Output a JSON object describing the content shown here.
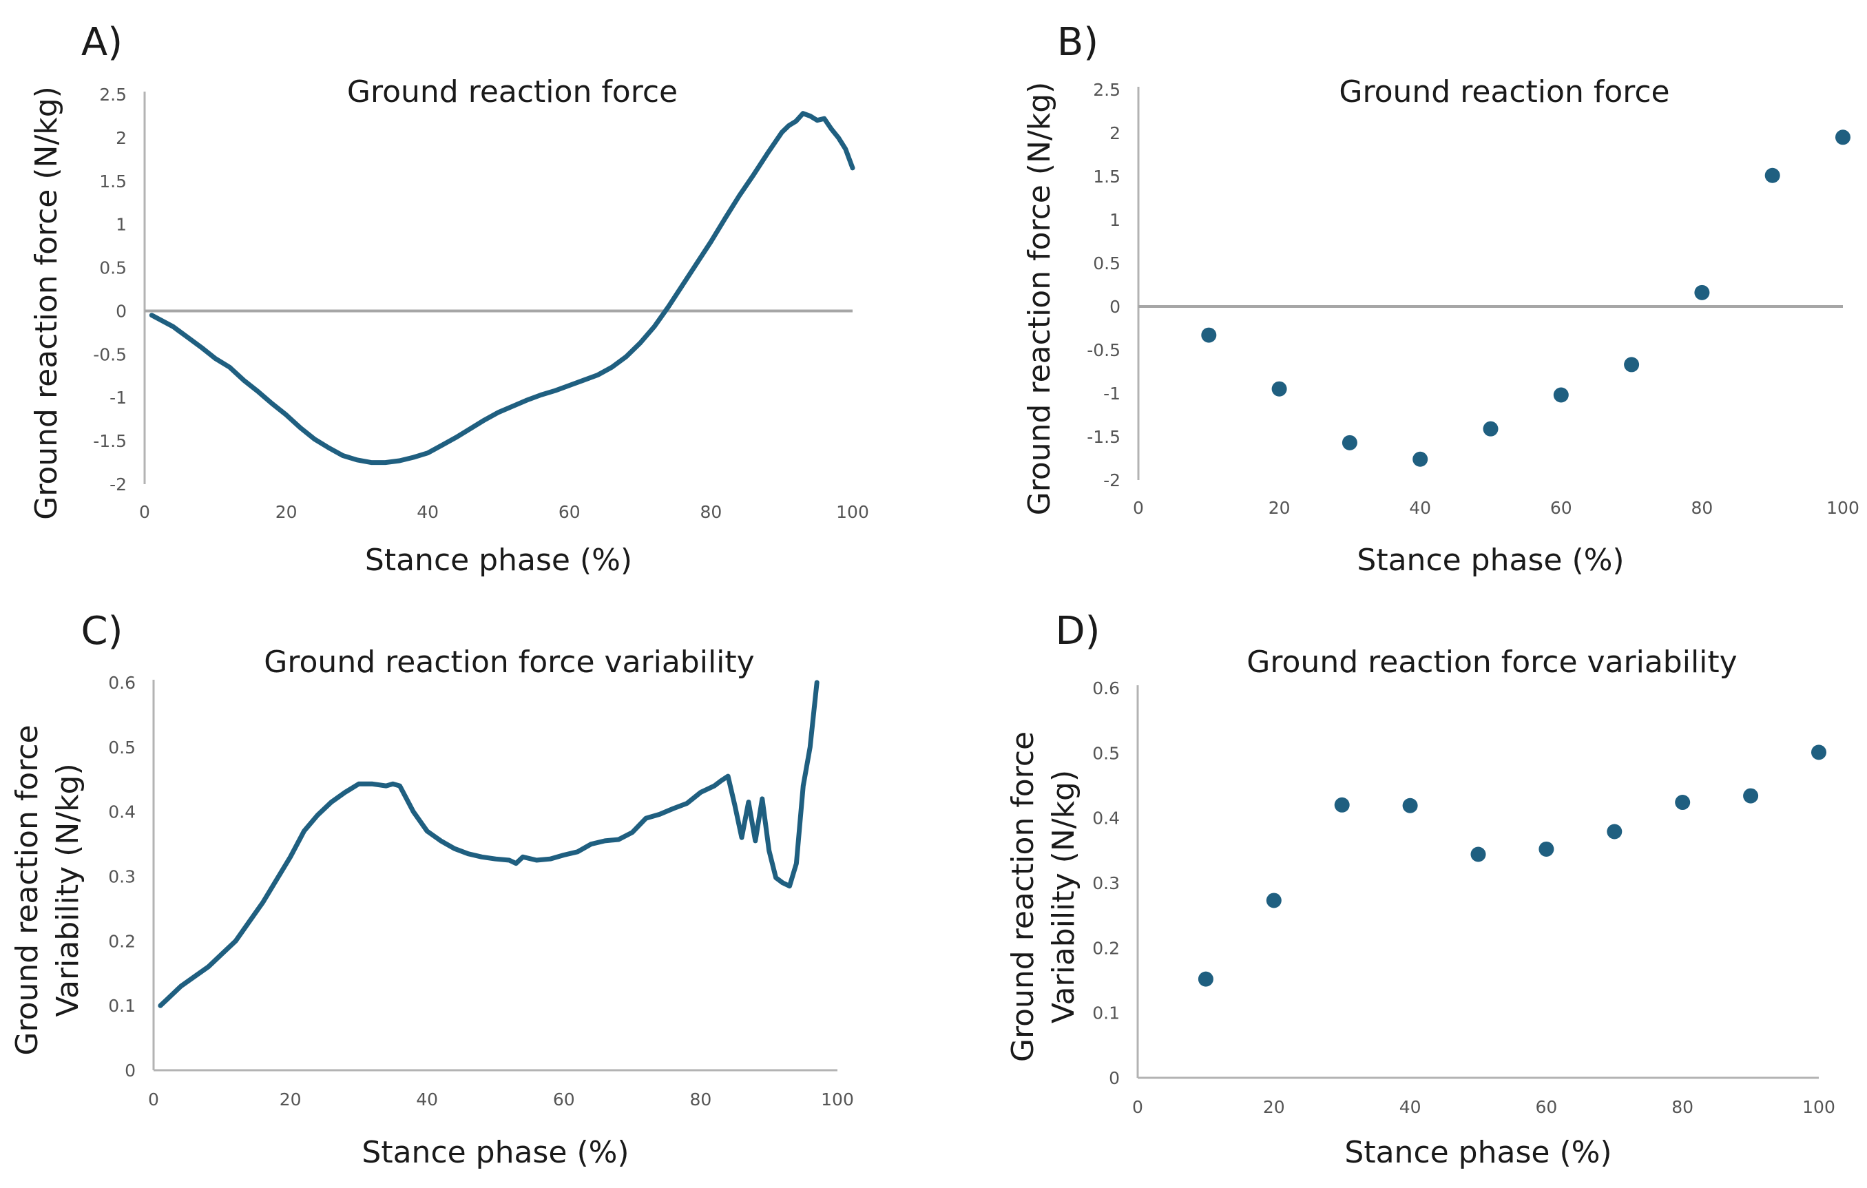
{
  "chart_data": [
    {
      "panel_label": "A)",
      "type": "line",
      "title": "Ground reaction force",
      "xlabel": "Stance phase (%)",
      "ylabel": [
        "Ground reaction force (N/kg)"
      ],
      "xlim": [
        0,
        100
      ],
      "ylim": [
        -2,
        2.5
      ],
      "xticks": [
        "0",
        "20",
        "40",
        "60",
        "80",
        "100"
      ],
      "yticks": [
        "2.5",
        "2",
        "1.5",
        "1",
        "0.5",
        "0",
        "-0.5",
        "-1",
        "-1.5",
        "-2"
      ],
      "zero_line": true,
      "color": "#1f5f80",
      "series": [
        {
          "x": [
            1,
            4,
            6,
            8,
            10,
            12,
            14,
            16,
            18,
            20,
            22,
            24,
            26,
            28,
            30,
            32,
            34,
            36,
            38,
            40,
            42,
            44,
            46,
            48,
            50,
            52,
            54,
            56,
            58,
            60,
            62,
            64,
            66,
            68,
            70,
            72,
            74,
            76,
            78,
            80,
            82,
            84,
            86,
            88,
            90,
            91,
            92,
            93,
            94,
            95,
            96,
            97,
            98,
            99,
            100
          ],
          "values": [
            -0.05,
            -0.18,
            -0.3,
            -0.42,
            -0.55,
            -0.65,
            -0.8,
            -0.93,
            -1.07,
            -1.2,
            -1.35,
            -1.48,
            -1.58,
            -1.67,
            -1.72,
            -1.75,
            -1.75,
            -1.73,
            -1.69,
            -1.64,
            -1.55,
            -1.46,
            -1.36,
            -1.26,
            -1.17,
            -1.1,
            -1.03,
            -0.97,
            -0.92,
            -0.86,
            -0.8,
            -0.74,
            -0.65,
            -0.53,
            -0.37,
            -0.18,
            0.05,
            0.3,
            0.55,
            0.8,
            1.07,
            1.33,
            1.57,
            1.82,
            2.06,
            2.14,
            2.19,
            2.28,
            2.25,
            2.2,
            2.22,
            2.1,
            2.0,
            1.87,
            1.65
          ]
        }
      ]
    },
    {
      "panel_label": "B)",
      "type": "scatter",
      "title": "Ground reaction force",
      "xlabel": "Stance phase (%)",
      "ylabel": [
        "Ground reaction force (N/kg)"
      ],
      "xlim": [
        0,
        100
      ],
      "ylim": [
        -2,
        2.5
      ],
      "xticks": [
        "0",
        "20",
        "40",
        "60",
        "80",
        "100"
      ],
      "yticks": [
        "2.5",
        "2",
        "1.5",
        "1",
        "0.5",
        "0",
        "-0.5",
        "-1",
        "-1.5",
        "-2"
      ],
      "zero_line": true,
      "color": "#1f5f80",
      "series": [
        {
          "x": [
            10,
            20,
            30,
            40,
            50,
            60,
            70,
            80,
            90,
            100
          ],
          "values": [
            -0.33,
            -0.95,
            -1.57,
            -1.76,
            -1.41,
            -1.02,
            -0.67,
            0.16,
            1.51,
            1.95
          ]
        }
      ]
    },
    {
      "panel_label": "C)",
      "type": "line",
      "title": "Ground reaction force variability",
      "xlabel": "Stance phase (%)",
      "ylabel": [
        "Ground reaction force",
        "Variability (N/kg)"
      ],
      "xlim": [
        0,
        100
      ],
      "ylim": [
        0,
        0.6
      ],
      "xticks": [
        "0",
        "20",
        "40",
        "60",
        "80",
        "100"
      ],
      "yticks": [
        "0.6",
        "0.5",
        "0.4",
        "0.3",
        "0.2",
        "0.1",
        "0"
      ],
      "zero_line": false,
      "color": "#1f5f80",
      "series": [
        {
          "x": [
            1,
            2,
            4,
            6,
            8,
            10,
            12,
            14,
            16,
            18,
            20,
            22,
            24,
            26,
            28,
            30,
            32,
            34,
            35,
            36,
            38,
            40,
            42,
            44,
            46,
            48,
            50,
            52,
            53,
            54,
            56,
            58,
            60,
            62,
            64,
            66,
            68,
            70,
            72,
            74,
            76,
            78,
            80,
            82,
            83,
            84,
            85,
            86,
            87,
            88,
            89,
            90,
            91,
            92,
            93,
            94,
            95,
            96,
            97
          ],
          "values": [
            0.1,
            0.11,
            0.13,
            0.145,
            0.16,
            0.18,
            0.2,
            0.23,
            0.26,
            0.295,
            0.33,
            0.37,
            0.395,
            0.415,
            0.43,
            0.443,
            0.443,
            0.44,
            0.443,
            0.44,
            0.4,
            0.37,
            0.355,
            0.343,
            0.335,
            0.33,
            0.327,
            0.325,
            0.32,
            0.33,
            0.325,
            0.327,
            0.333,
            0.338,
            0.35,
            0.355,
            0.357,
            0.368,
            0.39,
            0.396,
            0.405,
            0.413,
            0.43,
            0.44,
            0.448,
            0.455,
            0.41,
            0.36,
            0.415,
            0.355,
            0.42,
            0.34,
            0.298,
            0.29,
            0.285,
            0.32,
            0.44,
            0.5,
            0.6
          ]
        }
      ]
    },
    {
      "panel_label": "D)",
      "type": "scatter",
      "title": "Ground reaction force variability",
      "xlabel": "Stance phase (%)",
      "ylabel": [
        "Ground reaction force",
        "Variability (N/kg)"
      ],
      "xlim": [
        0,
        100
      ],
      "ylim": [
        0,
        0.6
      ],
      "xticks": [
        "0",
        "20",
        "40",
        "60",
        "80",
        "100"
      ],
      "yticks": [
        "0.6",
        "0.5",
        "0.4",
        "0.3",
        "0.2",
        "0.1",
        "0"
      ],
      "zero_line": false,
      "color": "#1f5f80",
      "series": [
        {
          "x": [
            10,
            20,
            30,
            40,
            50,
            60,
            70,
            80,
            90,
            100
          ],
          "values": [
            0.152,
            0.273,
            0.42,
            0.419,
            0.344,
            0.352,
            0.379,
            0.424,
            0.434,
            0.501
          ]
        }
      ]
    }
  ]
}
